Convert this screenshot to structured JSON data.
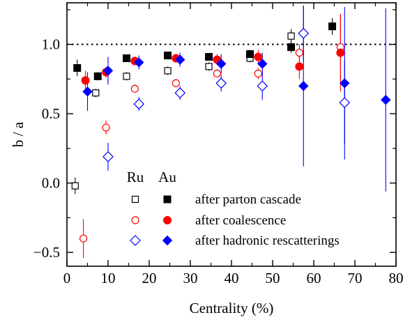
{
  "chart_data": {
    "type": "scatter",
    "title": "",
    "xlabel": "Centrality (%)",
    "ylabel": "b / a",
    "xlim": [
      0,
      80
    ],
    "ylim": [
      -0.6,
      1.3
    ],
    "xticks": [
      0,
      10,
      20,
      30,
      40,
      50,
      60,
      70,
      80
    ],
    "yticks": [
      -0.5,
      0.0,
      0.5,
      1.0
    ],
    "ytick_labels": [
      "−0.5",
      "0.0",
      "0.5",
      "1.0"
    ],
    "grid": false,
    "reference_line": {
      "y": 1.0,
      "style": "dotted",
      "color": "#000000"
    },
    "legend": {
      "placement": "bottom-right",
      "column_headers": [
        "Ru",
        "Au"
      ],
      "rows": [
        "after parton cascade",
        "after coalescence",
        "after hadronic rescatterings"
      ]
    },
    "series": [
      {
        "name": "after parton cascade",
        "system": "Ru",
        "marker": "square",
        "filled": false,
        "color": "#000000",
        "points": [
          {
            "x": 2,
            "y": -0.02,
            "err": 0.06
          },
          {
            "x": 7,
            "y": 0.65,
            "err": 0.03
          },
          {
            "x": 14.5,
            "y": 0.77,
            "err": 0.03
          },
          {
            "x": 24.5,
            "y": 0.81,
            "err": 0.03
          },
          {
            "x": 34.5,
            "y": 0.84,
            "err": 0.03
          },
          {
            "x": 44.5,
            "y": 0.9,
            "err": 0.03
          },
          {
            "x": 54.5,
            "y": 1.06,
            "err": 0.05
          }
        ]
      },
      {
        "name": "after parton cascade",
        "system": "Au",
        "marker": "square",
        "filled": true,
        "color": "#000000",
        "points": [
          {
            "x": 2.5,
            "y": 0.83,
            "err": 0.06
          },
          {
            "x": 7.5,
            "y": 0.77,
            "err": 0.03
          },
          {
            "x": 14.5,
            "y": 0.9,
            "err": 0.02
          },
          {
            "x": 24.5,
            "y": 0.92,
            "err": 0.02
          },
          {
            "x": 34.5,
            "y": 0.91,
            "err": 0.02
          },
          {
            "x": 44.5,
            "y": 0.93,
            "err": 0.03
          },
          {
            "x": 54.5,
            "y": 0.98,
            "err": 0.04
          },
          {
            "x": 64.5,
            "y": 1.13,
            "err": 0.06
          }
        ]
      },
      {
        "name": "after coalescence",
        "system": "Ru",
        "marker": "circle",
        "filled": false,
        "color": "#ff0000",
        "points": [
          {
            "x": 4,
            "y": -0.4,
            "err": 0.14
          },
          {
            "x": 9.5,
            "y": 0.4,
            "err": 0.05
          },
          {
            "x": 16.5,
            "y": 0.68,
            "err": 0.03
          },
          {
            "x": 26.5,
            "y": 0.72,
            "err": 0.03
          },
          {
            "x": 36.5,
            "y": 0.79,
            "err": 0.03
          },
          {
            "x": 46.5,
            "y": 0.79,
            "err": 0.04
          },
          {
            "x": 56.5,
            "y": 0.94,
            "err": 0.06
          },
          {
            "x": 66.5,
            "y": 0.98,
            "err": 0.24
          }
        ]
      },
      {
        "name": "after coalescence",
        "system": "Au",
        "marker": "circle",
        "filled": true,
        "color": "#ff0000",
        "points": [
          {
            "x": 4.5,
            "y": 0.74,
            "err": 0.07
          },
          {
            "x": 9.5,
            "y": 0.8,
            "err": 0.04
          },
          {
            "x": 16.5,
            "y": 0.88,
            "err": 0.03
          },
          {
            "x": 26.5,
            "y": 0.9,
            "err": 0.03
          },
          {
            "x": 36.5,
            "y": 0.89,
            "err": 0.04
          },
          {
            "x": 46.5,
            "y": 0.91,
            "err": 0.05
          },
          {
            "x": 56.5,
            "y": 0.84,
            "err": 0.09
          },
          {
            "x": 66.5,
            "y": 0.94,
            "err": 0.28
          }
        ]
      },
      {
        "name": "after hadronic rescatterings",
        "system": "Ru",
        "marker": "diamond",
        "filled": false,
        "color": "#0000ff",
        "points": [
          {
            "x": 10,
            "y": 0.19,
            "err": 0.1
          },
          {
            "x": 17.5,
            "y": 0.57,
            "err": 0.05
          },
          {
            "x": 27.5,
            "y": 0.65,
            "err": 0.05
          },
          {
            "x": 37.5,
            "y": 0.72,
            "err": 0.06
          },
          {
            "x": 47.5,
            "y": 0.7,
            "err": 0.1
          },
          {
            "x": 57.5,
            "y": 1.08,
            "err": 0.2
          },
          {
            "x": 67.5,
            "y": 0.58,
            "err": 0.3
          }
        ]
      },
      {
        "name": "after hadronic rescatterings",
        "system": "Au",
        "marker": "diamond",
        "filled": true,
        "color": "#0000ff",
        "points": [
          {
            "x": 5,
            "y": 0.66,
            "err": 0.14
          },
          {
            "x": 10,
            "y": 0.81,
            "err": 0.1
          },
          {
            "x": 17.5,
            "y": 0.87,
            "err": 0.05
          },
          {
            "x": 27.5,
            "y": 0.89,
            "err": 0.05
          },
          {
            "x": 37.5,
            "y": 0.86,
            "err": 0.07
          },
          {
            "x": 47.5,
            "y": 0.86,
            "err": 0.08
          },
          {
            "x": 57.5,
            "y": 0.7,
            "err": 0.58
          },
          {
            "x": 67.5,
            "y": 0.72,
            "err": 0.55
          },
          {
            "x": 77.5,
            "y": 0.6,
            "err": 0.66
          }
        ]
      }
    ]
  }
}
